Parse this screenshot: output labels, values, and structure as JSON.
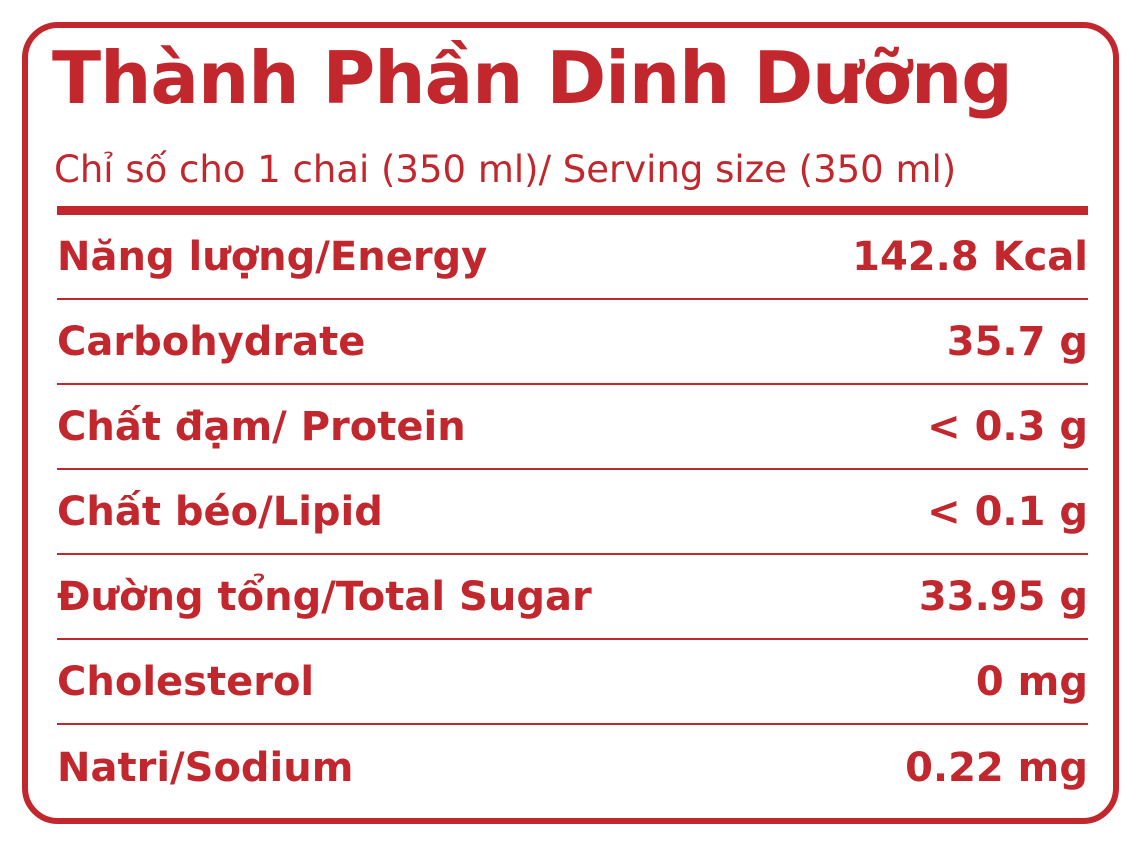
{
  "header": {
    "title": "Thành Phần Dinh Dưỡng",
    "subtitle": "Chỉ số cho 1 chai (350 ml)/ Serving size (350 ml)"
  },
  "table": {
    "rows": [
      [
        "Năng lượng/Energy",
        "142.8 Kcal"
      ],
      [
        "Carbohydrate",
        "35.7 g"
      ],
      [
        "Chất đạm/ Protein",
        "< 0.3 g"
      ],
      [
        "Chất béo/Lipid",
        "< 0.1 g"
      ],
      [
        "Đường tổng/Total Sugar",
        "33.95 g"
      ],
      [
        "Cholesterol",
        "0 mg"
      ],
      [
        "Natri/Sodium",
        "0.22 mg"
      ]
    ]
  }
}
